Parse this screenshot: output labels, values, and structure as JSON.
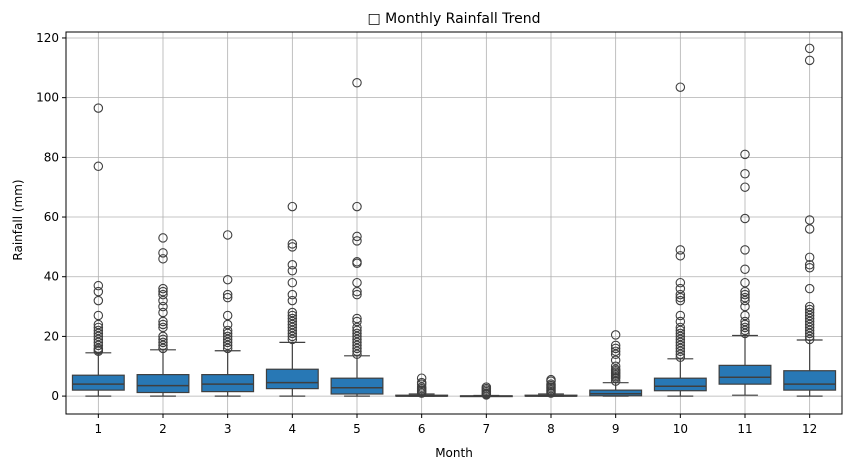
{
  "chart_data": {
    "type": "box",
    "title": "□ Monthly Rainfall Trend",
    "xlabel": "Month",
    "ylabel": "Rainfall (mm)",
    "categories": [
      "1",
      "2",
      "3",
      "4",
      "5",
      "6",
      "7",
      "8",
      "9",
      "10",
      "11",
      "12"
    ],
    "ylim": [
      -6,
      122
    ],
    "yticks": [
      0,
      20,
      40,
      60,
      80,
      100,
      120
    ],
    "grid": true,
    "box_color": "#2878b5",
    "line_color": "#3f3f3f",
    "boxes": [
      {
        "month": "1",
        "whisker_low": 0,
        "q1": 2,
        "median": 4,
        "q3": 7,
        "whisker_high": 14.5,
        "outliers": [
          15,
          15.5,
          16,
          17,
          18,
          19,
          20,
          21,
          22,
          23,
          24,
          27,
          32,
          35,
          37,
          77,
          96.5
        ]
      },
      {
        "month": "2",
        "whisker_low": 0,
        "q1": 1.2,
        "median": 3.5,
        "q3": 7.2,
        "whisker_high": 15.5,
        "outliers": [
          16,
          17,
          18,
          19,
          20,
          23,
          24,
          25,
          28,
          30,
          32,
          34,
          35,
          36,
          46,
          48,
          53
        ]
      },
      {
        "month": "3",
        "whisker_low": 0,
        "q1": 1.5,
        "median": 4,
        "q3": 7.2,
        "whisker_high": 15.2,
        "outliers": [
          16,
          17,
          18,
          19,
          20,
          21,
          22,
          24,
          27,
          33,
          34,
          39,
          54
        ]
      },
      {
        "month": "4",
        "whisker_low": 0,
        "q1": 2.5,
        "median": 4.5,
        "q3": 9,
        "whisker_high": 18,
        "outliers": [
          19,
          20,
          21,
          22,
          23,
          24,
          25,
          26,
          27,
          28,
          32,
          34,
          38,
          42,
          44,
          50,
          51,
          63.5
        ]
      },
      {
        "month": "5",
        "whisker_low": 0,
        "q1": 0.7,
        "median": 2.8,
        "q3": 6,
        "whisker_high": 13.5,
        "outliers": [
          14,
          15,
          16,
          17,
          18,
          19,
          20,
          21,
          22,
          23,
          25,
          26,
          34,
          35,
          38,
          44.5,
          45,
          52,
          53.5,
          63.5,
          105
        ]
      },
      {
        "month": "6",
        "whisker_low": 0,
        "q1": 0,
        "median": 0,
        "q3": 0.3,
        "whisker_high": 0.7,
        "outliers": [
          1,
          1.5,
          2,
          2.5,
          3,
          4,
          4.5,
          6
        ]
      },
      {
        "month": "7",
        "whisker_low": 0,
        "q1": 0,
        "median": 0,
        "q3": 0.1,
        "whisker_high": 0.2,
        "outliers": [
          0.4,
          0.7,
          1,
          1.5,
          2,
          2.5,
          3
        ]
      },
      {
        "month": "8",
        "whisker_low": 0,
        "q1": 0,
        "median": 0,
        "q3": 0.3,
        "whisker_high": 0.7,
        "outliers": [
          1,
          1.5,
          2,
          2.5,
          3,
          3.5,
          4,
          5,
          5.5
        ]
      },
      {
        "month": "9",
        "whisker_low": 0,
        "q1": 0.1,
        "median": 0.8,
        "q3": 2,
        "whisker_high": 4.5,
        "outliers": [
          5,
          6,
          6.5,
          7,
          7.5,
          8,
          8.5,
          9,
          10,
          12,
          14,
          15,
          16,
          17,
          20.5
        ]
      },
      {
        "month": "10",
        "whisker_low": 0,
        "q1": 1.8,
        "median": 3.3,
        "q3": 6,
        "whisker_high": 12.5,
        "outliers": [
          13,
          14,
          15,
          16,
          17,
          18,
          19,
          20,
          21,
          22,
          23,
          25,
          27,
          32,
          33,
          34,
          36,
          38,
          47,
          49,
          103.5
        ]
      },
      {
        "month": "11",
        "whisker_low": 0.3,
        "q1": 4,
        "median": 6.3,
        "q3": 10.3,
        "whisker_high": 20.3,
        "outliers": [
          21,
          22,
          23,
          24,
          25,
          27,
          30,
          32,
          33,
          34,
          35,
          38,
          42.5,
          49,
          59.5,
          70,
          74.5,
          81
        ]
      },
      {
        "month": "12",
        "whisker_low": 0,
        "q1": 2,
        "median": 4,
        "q3": 8.5,
        "whisker_high": 18.8,
        "outliers": [
          19,
          20,
          21,
          22,
          23,
          24,
          25,
          26,
          27,
          28,
          29,
          30,
          36,
          43,
          44,
          46.5,
          56,
          59,
          112.5,
          116.5
        ]
      }
    ]
  }
}
